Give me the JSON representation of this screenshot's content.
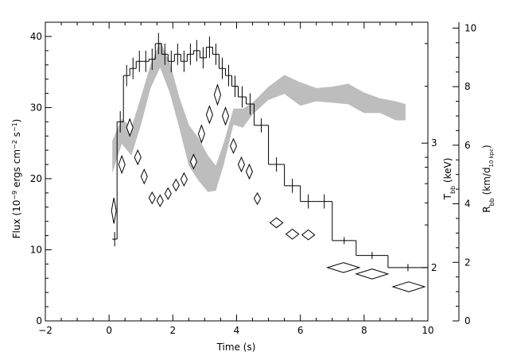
{
  "chart_data": {
    "type": "line",
    "xlabel": "Time (s)",
    "xlim": [
      -2,
      10
    ],
    "x_ticks": [
      "−2",
      "0",
      "2",
      "4",
      "6",
      "8",
      "10"
    ],
    "x_tick_values": [
      -2,
      0,
      2,
      4,
      6,
      8,
      10
    ],
    "left_axis": {
      "label_parts": [
        "Flux (10",
        "−9",
        " ergs cm",
        "−2",
        " s",
        "−1",
        ")"
      ],
      "ylim": [
        0,
        42
      ],
      "ticks": [
        "0",
        "10",
        "20",
        "30",
        "40"
      ],
      "tick_values": [
        0,
        10,
        20,
        30,
        40
      ]
    },
    "right_axis_T": {
      "label_main": "T",
      "label_sub": "bb",
      "label_rest": " (keV)",
      "ticks": [
        "2",
        "3"
      ],
      "tick_values": [
        2,
        3
      ]
    },
    "right_axis_R": {
      "label_main": "R",
      "label_sub": "bb",
      "label_mid": " (km/d",
      "label_sub2": "10 kpc",
      "label_end": ")",
      "ylim": [
        0,
        10.2
      ],
      "ticks": [
        "0",
        "2",
        "4",
        "6",
        "8",
        "10"
      ],
      "tick_values": [
        0,
        2,
        4,
        6,
        8,
        10
      ]
    },
    "series": [
      {
        "kind": "histogram-flux",
        "bins": [
          {
            "x0": 0.1,
            "x1": 0.25,
            "y": 11.5,
            "err": 1.0
          },
          {
            "x0": 0.25,
            "x1": 0.45,
            "y": 28.0,
            "err": 1.5
          },
          {
            "x0": 0.45,
            "x1": 0.65,
            "y": 34.5,
            "err": 1.5
          },
          {
            "x0": 0.65,
            "x1": 0.85,
            "y": 35.5,
            "err": 1.5
          },
          {
            "x0": 0.85,
            "x1": 1.05,
            "y": 36.5,
            "err": 1.5
          },
          {
            "x0": 1.05,
            "x1": 1.25,
            "y": 36.5,
            "err": 1.5
          },
          {
            "x0": 1.25,
            "x1": 1.45,
            "y": 36.8,
            "err": 1.5
          },
          {
            "x0": 1.45,
            "x1": 1.65,
            "y": 39.0,
            "err": 1.5
          },
          {
            "x0": 1.65,
            "x1": 1.85,
            "y": 37.5,
            "err": 1.5
          },
          {
            "x0": 1.85,
            "x1": 2.05,
            "y": 36.5,
            "err": 1.5
          },
          {
            "x0": 2.05,
            "x1": 2.25,
            "y": 37.5,
            "err": 1.5
          },
          {
            "x0": 2.25,
            "x1": 2.45,
            "y": 36.5,
            "err": 1.5
          },
          {
            "x0": 2.45,
            "x1": 2.65,
            "y": 37.5,
            "err": 1.5
          },
          {
            "x0": 2.65,
            "x1": 2.85,
            "y": 38.0,
            "err": 1.5
          },
          {
            "x0": 2.85,
            "x1": 3.05,
            "y": 37.0,
            "err": 1.5
          },
          {
            "x0": 3.05,
            "x1": 3.25,
            "y": 38.5,
            "err": 1.5
          },
          {
            "x0": 3.25,
            "x1": 3.45,
            "y": 37.5,
            "err": 1.5
          },
          {
            "x0": 3.45,
            "x1": 3.65,
            "y": 35.5,
            "err": 1.5
          },
          {
            "x0": 3.65,
            "x1": 3.85,
            "y": 34.5,
            "err": 1.5
          },
          {
            "x0": 3.85,
            "x1": 4.05,
            "y": 33.0,
            "err": 1.5
          },
          {
            "x0": 4.05,
            "x1": 4.3,
            "y": 31.5,
            "err": 1.5
          },
          {
            "x0": 4.3,
            "x1": 4.55,
            "y": 30.5,
            "err": 1.5
          },
          {
            "x0": 4.55,
            "x1": 5.0,
            "y": 27.5,
            "err": 1.0
          },
          {
            "x0": 5.0,
            "x1": 5.5,
            "y": 22.0,
            "err": 1.0
          },
          {
            "x0": 5.5,
            "x1": 6.0,
            "y": 19.0,
            "err": 1.0
          },
          {
            "x0": 6.0,
            "x1": 6.5,
            "y": 16.8,
            "err": 1.0
          },
          {
            "x0": 6.5,
            "x1": 7.0,
            "y": 16.8,
            "err": 1.0
          },
          {
            "x0": 7.0,
            "x1": 7.75,
            "y": 11.3,
            "err": 0.5
          },
          {
            "x0": 7.75,
            "x1": 8.75,
            "y": 9.2,
            "err": 0.5
          },
          {
            "x0": 8.75,
            "x1": 10.0,
            "y": 7.5,
            "err": 0.5
          }
        ]
      },
      {
        "kind": "band-radius",
        "x": [
          0.1,
          0.4,
          0.7,
          1.0,
          1.3,
          1.6,
          1.9,
          2.2,
          2.5,
          2.8,
          3.1,
          3.35,
          3.6,
          3.9,
          4.2,
          4.5,
          5.0,
          5.5,
          6.0,
          6.5,
          7.0,
          7.5,
          8.0,
          8.5,
          9.0,
          9.3
        ],
        "lo": [
          5.05,
          6.05,
          5.65,
          6.7,
          7.95,
          8.65,
          7.8,
          6.6,
          5.3,
          4.8,
          4.4,
          4.45,
          5.35,
          6.7,
          6.6,
          7.05,
          7.55,
          7.75,
          7.35,
          7.5,
          7.45,
          7.4,
          7.1,
          7.1,
          6.85,
          6.85
        ],
        "hi": [
          6.15,
          6.9,
          6.6,
          7.65,
          8.75,
          9.55,
          8.85,
          7.65,
          6.7,
          6.25,
          5.65,
          5.3,
          6.1,
          7.25,
          7.25,
          7.45,
          8.0,
          8.4,
          8.15,
          7.95,
          8.0,
          8.1,
          7.8,
          7.6,
          7.5,
          7.4
        ]
      },
      {
        "kind": "diamonds-temperature",
        "points": [
          {
            "x": 0.15,
            "y": 15.5,
            "xerr": 0.05,
            "yerr": 1.8
          },
          {
            "x": 0.4,
            "y": 22.0,
            "xerr": 0.1,
            "yerr": 1.2
          },
          {
            "x": 0.65,
            "y": 27.2,
            "xerr": 0.1,
            "yerr": 1.2
          },
          {
            "x": 0.9,
            "y": 23.0,
            "xerr": 0.1,
            "yerr": 1.0
          },
          {
            "x": 1.1,
            "y": 20.3,
            "xerr": 0.1,
            "yerr": 1.0
          },
          {
            "x": 1.35,
            "y": 17.3,
            "xerr": 0.1,
            "yerr": 0.8
          },
          {
            "x": 1.6,
            "y": 16.9,
            "xerr": 0.1,
            "yerr": 0.8
          },
          {
            "x": 1.85,
            "y": 17.9,
            "xerr": 0.1,
            "yerr": 0.8
          },
          {
            "x": 2.1,
            "y": 19.1,
            "xerr": 0.1,
            "yerr": 0.8
          },
          {
            "x": 2.35,
            "y": 19.9,
            "xerr": 0.1,
            "yerr": 0.9
          },
          {
            "x": 2.65,
            "y": 22.4,
            "xerr": 0.1,
            "yerr": 1.0
          },
          {
            "x": 2.9,
            "y": 26.3,
            "xerr": 0.1,
            "yerr": 1.2
          },
          {
            "x": 3.15,
            "y": 29.0,
            "xerr": 0.1,
            "yerr": 1.2
          },
          {
            "x": 3.4,
            "y": 31.8,
            "xerr": 0.1,
            "yerr": 1.4
          },
          {
            "x": 3.65,
            "y": 28.8,
            "xerr": 0.1,
            "yerr": 1.2
          },
          {
            "x": 3.9,
            "y": 24.6,
            "xerr": 0.1,
            "yerr": 1.0
          },
          {
            "x": 4.15,
            "y": 22.0,
            "xerr": 0.1,
            "yerr": 1.0
          },
          {
            "x": 4.4,
            "y": 21.0,
            "xerr": 0.1,
            "yerr": 1.0
          },
          {
            "x": 4.65,
            "y": 17.2,
            "xerr": 0.1,
            "yerr": 0.8
          },
          {
            "x": 5.25,
            "y": 13.8,
            "xerr": 0.2,
            "yerr": 0.7
          },
          {
            "x": 5.75,
            "y": 12.2,
            "xerr": 0.2,
            "yerr": 0.7
          },
          {
            "x": 6.25,
            "y": 12.1,
            "xerr": 0.2,
            "yerr": 0.7
          },
          {
            "x": 7.35,
            "y": 7.5,
            "xerr": 0.5,
            "yerr": 0.7
          },
          {
            "x": 8.25,
            "y": 6.6,
            "xerr": 0.5,
            "yerr": 0.7
          },
          {
            "x": 9.4,
            "y": 4.8,
            "xerr": 0.5,
            "yerr": 0.7
          }
        ]
      }
    ],
    "colors": {
      "band": "#bdbdbd",
      "lines": "#000000"
    }
  }
}
